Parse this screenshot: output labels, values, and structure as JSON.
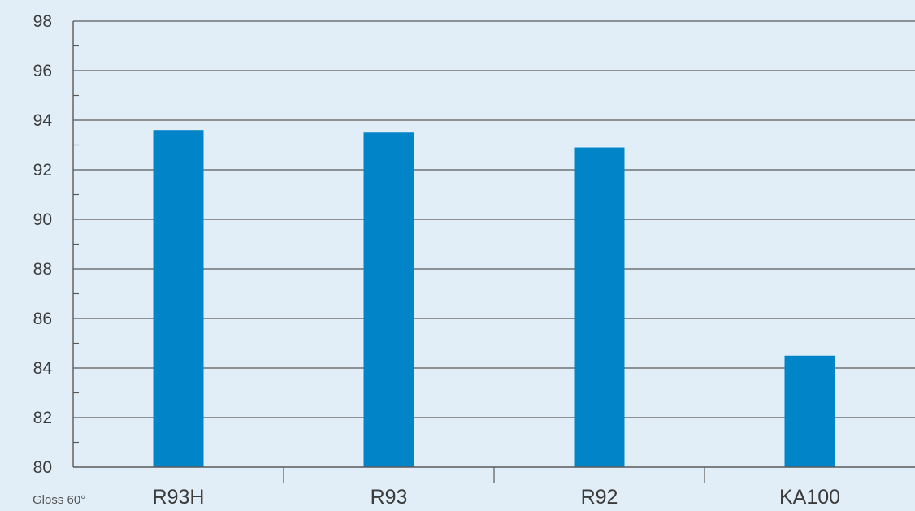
{
  "chart_data": {
    "type": "bar",
    "categories": [
      "R93H",
      "R93",
      "R92",
      "KA100"
    ],
    "values": [
      93.6,
      93.5,
      92.9,
      84.5
    ],
    "ylim": [
      80,
      98
    ],
    "yticks": [
      "80",
      "82",
      "84",
      "86",
      "88",
      "90",
      "92",
      "94",
      "96",
      "98"
    ],
    "ytick_values": [
      80,
      82,
      84,
      86,
      88,
      90,
      92,
      94,
      96,
      98
    ],
    "unit_label": "Gloss 60°",
    "grid": true,
    "legend": "none",
    "bar_color": "#0285c8",
    "background_color": "#e1eef8",
    "grid_color": "#5a5a5a"
  }
}
